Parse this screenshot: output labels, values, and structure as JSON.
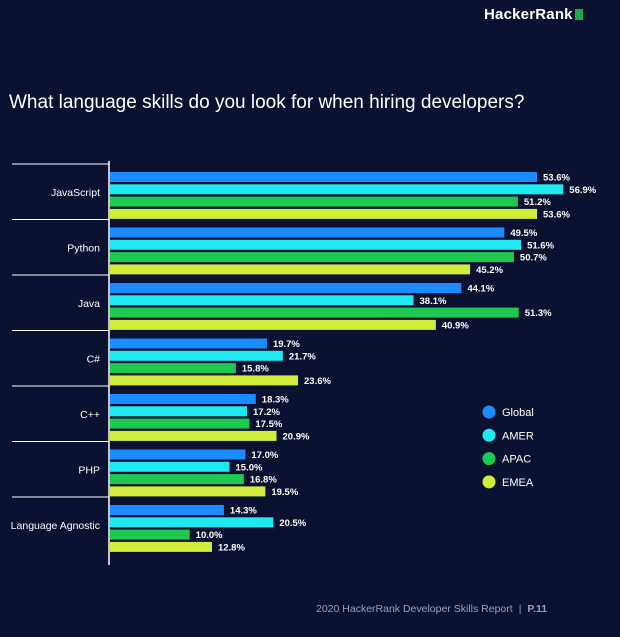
{
  "brand": {
    "name": "HackerRank",
    "accent": "#1ba94c"
  },
  "title": "What language skills do you look for when hiring developers?",
  "footer": {
    "report": "2020 HackerRank Developer Skills Report",
    "separator": "|",
    "page": "P.11"
  },
  "colors": {
    "background": "#0b1231",
    "Global": "#1a8cff",
    "AMER": "#1ee8f0",
    "APAC": "#1dc94f",
    "EMEA": "#d2ec3c"
  },
  "chart_data": {
    "type": "bar",
    "orientation": "horizontal",
    "title": "What language skills do you look for when hiring developers?",
    "categories": [
      "JavaScript",
      "Python",
      "Java",
      "C#",
      "C++",
      "PHP",
      "Language Agnostic"
    ],
    "series": [
      {
        "name": "Global",
        "color": "#1a8cff",
        "values": [
          53.6,
          49.5,
          44.1,
          19.7,
          18.3,
          17.0,
          14.3
        ],
        "labels": [
          "53.6%",
          "49.5%",
          "44.1%",
          "19.7%",
          "18.3%",
          "17.0%",
          "14.3%"
        ]
      },
      {
        "name": "AMER",
        "color": "#1ee8f0",
        "values": [
          56.9,
          51.6,
          38.1,
          21.7,
          17.2,
          15.0,
          20.5
        ],
        "labels": [
          "56.9%",
          "51.6%",
          "38.1%",
          "21.7%",
          "17.2%",
          "15.0%",
          "20.5%"
        ]
      },
      {
        "name": "APAC",
        "color": "#1dc94f",
        "values": [
          51.2,
          50.7,
          51.3,
          15.8,
          17.5,
          16.8,
          10.0
        ],
        "labels": [
          "51.2%",
          "50.7%",
          "51.3%",
          "15.8%",
          "17.5%",
          "16.8%",
          "10.0%"
        ]
      },
      {
        "name": "EMEA",
        "color": "#d2ec3c",
        "values": [
          53.6,
          45.2,
          40.9,
          23.6,
          20.9,
          19.5,
          12.8
        ],
        "labels": [
          "53.6%",
          "45.2%",
          "40.9%",
          "23.6%",
          "20.9%",
          "19.5%",
          "12.8%"
        ]
      }
    ],
    "xlim": [
      0,
      60
    ],
    "grid": false,
    "legend": "right"
  }
}
